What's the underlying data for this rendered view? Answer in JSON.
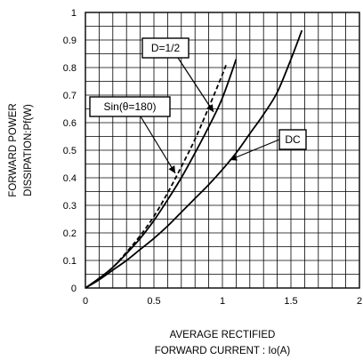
{
  "chart_data": {
    "type": "line",
    "title": "",
    "xlabel": [
      "AVERAGE RECTIFIED",
      "FORWARD CURRENT : Io(A)"
    ],
    "ylabel": [
      "FORWARD POWER",
      "DISSIPATION:Pf(W)"
    ],
    "xlim": [
      0,
      2
    ],
    "ylim": [
      0,
      1
    ],
    "x_ticks": [
      "0",
      "0.5",
      "1",
      "1.5",
      "2"
    ],
    "y_ticks": [
      "0",
      "0.1",
      "0.2",
      "0.3",
      "0.4",
      "0.5",
      "0.6",
      "0.7",
      "0.8",
      "0.9",
      "1"
    ],
    "grid": true,
    "series": [
      {
        "name": "DC",
        "style": "solid",
        "x": [
          0,
          0.1,
          0.2,
          0.3,
          0.4,
          0.5,
          0.6,
          0.7,
          0.8,
          0.9,
          1.0,
          1.1,
          1.2,
          1.3,
          1.4,
          1.5,
          1.58
        ],
        "y": [
          0,
          0.03,
          0.065,
          0.1,
          0.14,
          0.18,
          0.225,
          0.275,
          0.325,
          0.375,
          0.43,
          0.49,
          0.56,
          0.63,
          0.71,
          0.83,
          0.935
        ]
      },
      {
        "name": "D=1/2",
        "style": "solid",
        "x": [
          0,
          0.1,
          0.2,
          0.3,
          0.4,
          0.5,
          0.6,
          0.7,
          0.8,
          0.9,
          1.0,
          1.1
        ],
        "y": [
          0,
          0.035,
          0.075,
          0.125,
          0.18,
          0.245,
          0.32,
          0.4,
          0.49,
          0.585,
          0.69,
          0.83
        ]
      },
      {
        "name": "Sin(θ=180)",
        "style": "dashed",
        "x": [
          0,
          0.1,
          0.2,
          0.3,
          0.4,
          0.5,
          0.6,
          0.7,
          0.8,
          0.9,
          1.0,
          1.03
        ],
        "y": [
          0,
          0.035,
          0.075,
          0.13,
          0.19,
          0.26,
          0.345,
          0.44,
          0.54,
          0.655,
          0.775,
          0.815
        ]
      }
    ],
    "annotations": [
      {
        "text": "D=1/2",
        "target_series": "D=1/2"
      },
      {
        "text": "Sin(θ=180)",
        "target_series": "Sin(θ=180)"
      },
      {
        "text": "DC",
        "target_series": "DC"
      }
    ]
  }
}
